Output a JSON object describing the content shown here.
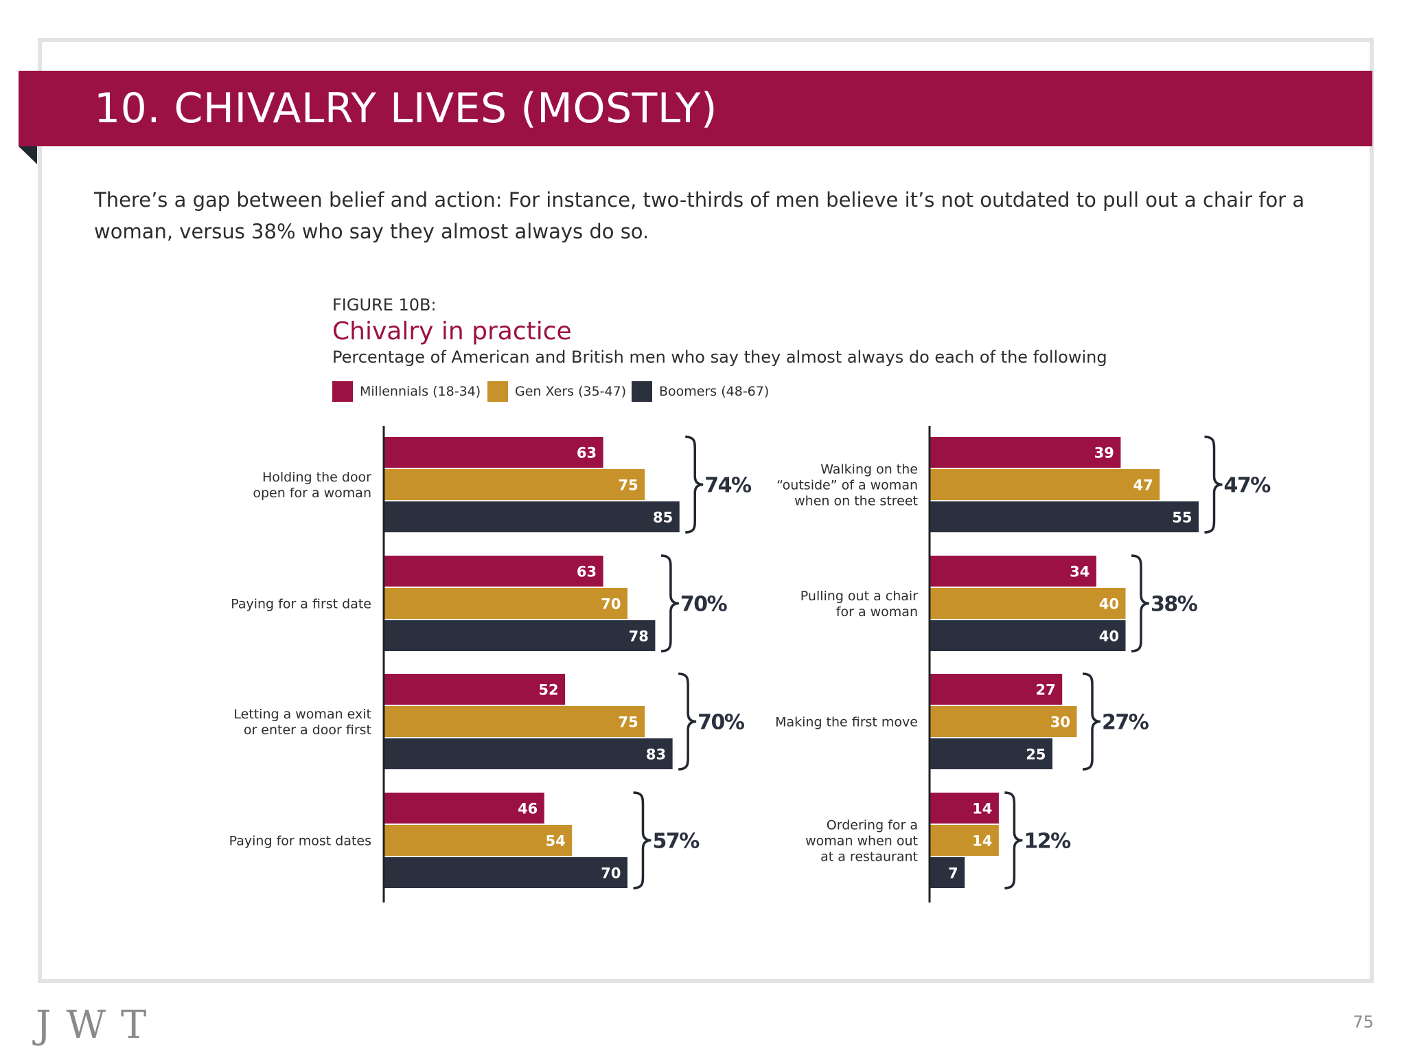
{
  "header": {
    "title": "10. CHIVALRY LIVES (MOSTLY)",
    "intro": "There’s a gap between belief and action: For instance, two-thirds of men believe it’s not outdated to pull out a chair for a woman, versus 38% who say they almost always do so."
  },
  "figure": {
    "label": "FIGURE 10B:",
    "title": "Chivalry in practice",
    "subtitle": "Percentage of American and British men who say they almost always do each of the following"
  },
  "legend": [
    {
      "label": "Millennials (18-34)",
      "color": "#9c1144"
    },
    {
      "label": "Gen Xers (35-47)",
      "color": "#c8922a"
    },
    {
      "label": "Boomers (48-67)",
      "color": "#2b303e"
    }
  ],
  "chart_data": [
    {
      "type": "bar",
      "orientation": "horizontal",
      "series_names": [
        "Millennials (18-34)",
        "Gen Xers (35-47)",
        "Boomers (48-67)"
      ],
      "categories": [
        {
          "label": [
            "Holding the door",
            "open for a woman"
          ],
          "values": [
            63,
            75,
            85
          ],
          "total": "74%"
        },
        {
          "label": [
            "Paying for a first date"
          ],
          "values": [
            63,
            70,
            78
          ],
          "total": "70%"
        },
        {
          "label": [
            "Letting a woman exit",
            "or enter a door first"
          ],
          "values": [
            52,
            75,
            83
          ],
          "total": "70%"
        },
        {
          "label": [
            "Paying for most dates"
          ],
          "values": [
            46,
            54,
            70
          ],
          "total": "57%"
        }
      ]
    },
    {
      "type": "bar",
      "orientation": "horizontal",
      "series_names": [
        "Millennials (18-34)",
        "Gen Xers (35-47)",
        "Boomers (48-67)"
      ],
      "categories": [
        {
          "label": [
            "Walking on the",
            "“outside” of a woman",
            "when on the street"
          ],
          "values": [
            39,
            47,
            55
          ],
          "total": "47%"
        },
        {
          "label": [
            "Pulling out a chair",
            "for a woman"
          ],
          "values": [
            34,
            40,
            40
          ],
          "total": "38%"
        },
        {
          "label": [
            "Making the first move"
          ],
          "values": [
            27,
            30,
            25
          ],
          "total": "27%"
        },
        {
          "label": [
            "Ordering for a",
            "woman when out",
            "at a restaurant"
          ],
          "values": [
            14,
            14,
            7
          ],
          "total": "12%"
        }
      ]
    }
  ],
  "footer": {
    "logo": "JWT",
    "page": "75"
  }
}
